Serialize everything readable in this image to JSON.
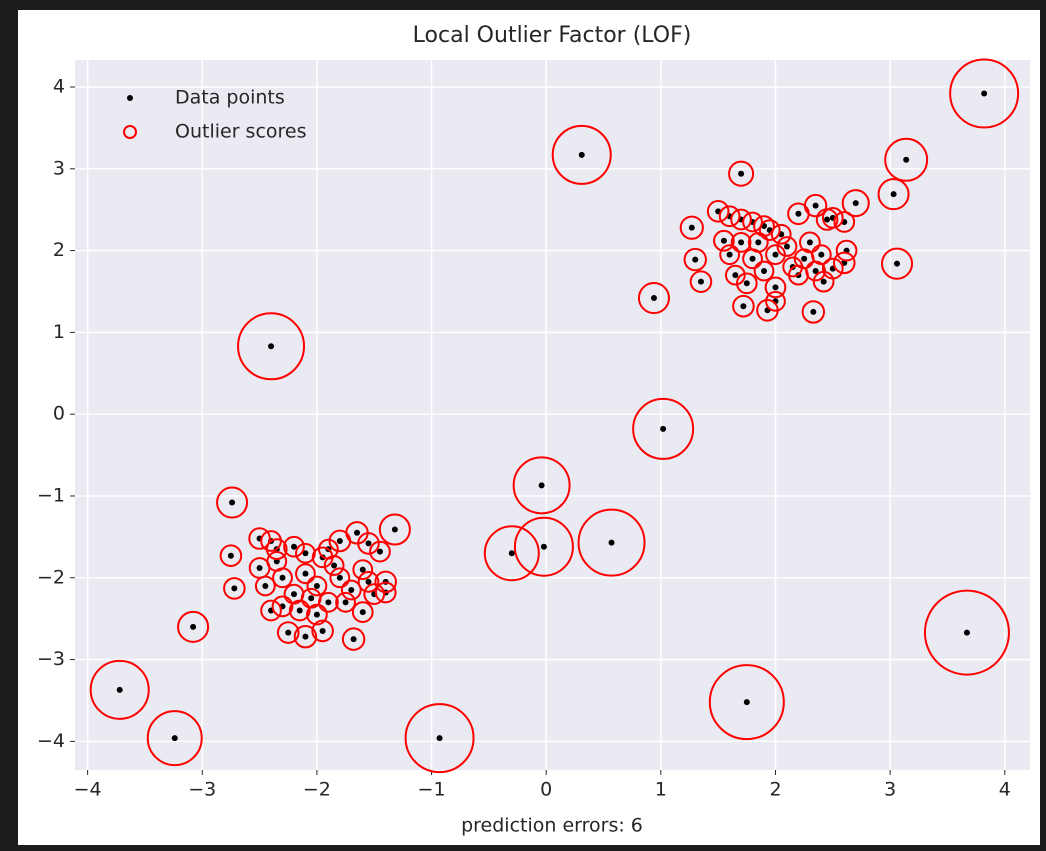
{
  "chart_data": {
    "type": "scatter",
    "title": "Local Outlier Factor (LOF)",
    "x_label": "prediction errors: 6",
    "xlim": [
      -4.11,
      4.22
    ],
    "ylim": [
      -4.35,
      4.33
    ],
    "xticks": [
      {
        "value": -4,
        "label": "−4"
      },
      {
        "value": -3,
        "label": "−3"
      },
      {
        "value": -2,
        "label": "−2"
      },
      {
        "value": -1,
        "label": "−1"
      },
      0,
      1,
      2,
      3,
      4
    ],
    "yticks": [
      {
        "value": -4,
        "label": "−4"
      },
      {
        "value": -3,
        "label": "−3"
      },
      {
        "value": -2,
        "label": "−2"
      },
      {
        "value": -1,
        "label": "−1"
      },
      0,
      1,
      2,
      3,
      4
    ],
    "grid": true,
    "legend": "upper left",
    "series": [
      {
        "name": "Data points",
        "color": "#000000",
        "x": [
          3.82,
          0.31,
          -2.4,
          1.02,
          -0.04,
          -0.3,
          -0.02,
          0.57,
          3.67,
          1.75,
          -0.93,
          -3.72,
          -3.24,
          -3.08,
          -2.74,
          3.14,
          3.03,
          3.06,
          0.94,
          1.7,
          2.7,
          -1.32,
          1.5,
          1.6,
          1.7,
          1.8,
          1.9,
          2.05,
          2.2,
          2.35,
          2.45,
          2.6,
          2.5,
          1.27,
          1.3,
          1.35,
          1.55,
          1.6,
          1.65,
          1.75,
          1.72,
          1.93,
          2.0,
          2.33,
          2.42,
          2.6,
          2.62,
          2.5,
          1.8,
          1.9,
          2.0,
          2.1,
          2.15,
          2.25,
          2.3,
          2.4,
          1.85,
          2.0,
          2.2,
          1.7,
          1.95,
          2.35,
          -2.5,
          -2.4,
          -2.35,
          -2.2,
          -2.1,
          -1.95,
          -1.8,
          -1.65,
          -1.55,
          -1.45,
          -1.4,
          -1.4,
          -1.5,
          -1.6,
          -1.68,
          -1.95,
          -2.1,
          -2.25,
          -2.4,
          -2.45,
          -2.5,
          -2.75,
          -2.72,
          -2.3,
          -2.2,
          -2.1,
          -2.0,
          -1.9,
          -1.8,
          -1.7,
          -1.85,
          -2.15,
          -2.3,
          -1.6,
          -2.0,
          -1.75,
          -2.35,
          -2.05,
          -1.55,
          -1.9
        ],
        "values": [
          3.92,
          3.17,
          0.83,
          -0.18,
          -0.87,
          -1.7,
          -1.62,
          -1.57,
          -2.67,
          -3.52,
          -3.96,
          -3.37,
          -3.96,
          -2.6,
          -1.08,
          3.11,
          2.69,
          1.84,
          1.42,
          2.94,
          2.58,
          -1.41,
          2.48,
          2.42,
          2.38,
          2.35,
          2.3,
          2.2,
          2.45,
          2.55,
          2.38,
          2.35,
          2.4,
          2.28,
          1.89,
          1.62,
          2.12,
          1.95,
          1.7,
          1.6,
          1.32,
          1.27,
          1.38,
          1.25,
          1.62,
          1.85,
          2.0,
          1.78,
          1.9,
          1.75,
          1.95,
          2.05,
          1.8,
          1.9,
          2.1,
          1.95,
          2.1,
          1.55,
          1.7,
          2.1,
          2.25,
          1.75,
          -1.52,
          -1.55,
          -1.65,
          -1.62,
          -1.7,
          -1.75,
          -1.55,
          -1.45,
          -1.58,
          -1.68,
          -2.05,
          -2.18,
          -2.2,
          -2.42,
          -2.75,
          -2.65,
          -2.72,
          -2.67,
          -2.4,
          -2.1,
          -1.88,
          -1.73,
          -2.13,
          -2.0,
          -2.2,
          -1.95,
          -2.1,
          -2.3,
          -2.0,
          -2.15,
          -1.85,
          -2.4,
          -2.35,
          -1.9,
          -2.45,
          -2.3,
          -1.8,
          -2.25,
          -2.05,
          -1.65
        ]
      },
      {
        "name": "Outlier scores",
        "color": "#ff0000",
        "sizes": [
          655,
          477,
          617,
          510,
          444,
          413,
          477,
          617,
          1000,
          776,
          655,
          477,
          413,
          128,
          128,
          250,
          128,
          128,
          128,
          82,
          96,
          128,
          60,
          55,
          55,
          50,
          55,
          50,
          60,
          65,
          60,
          55,
          55,
          70,
          65,
          60,
          55,
          50,
          50,
          55,
          60,
          60,
          50,
          65,
          55,
          60,
          55,
          55,
          50,
          50,
          50,
          50,
          50,
          50,
          55,
          50,
          50,
          55,
          50,
          50,
          55,
          50,
          60,
          55,
          55,
          55,
          50,
          55,
          60,
          65,
          60,
          55,
          60,
          55,
          55,
          55,
          65,
          60,
          65,
          60,
          55,
          50,
          55,
          60,
          60,
          50,
          50,
          50,
          50,
          50,
          50,
          50,
          50,
          55,
          55,
          50,
          55,
          50,
          50,
          50,
          55,
          50
        ]
      }
    ]
  }
}
